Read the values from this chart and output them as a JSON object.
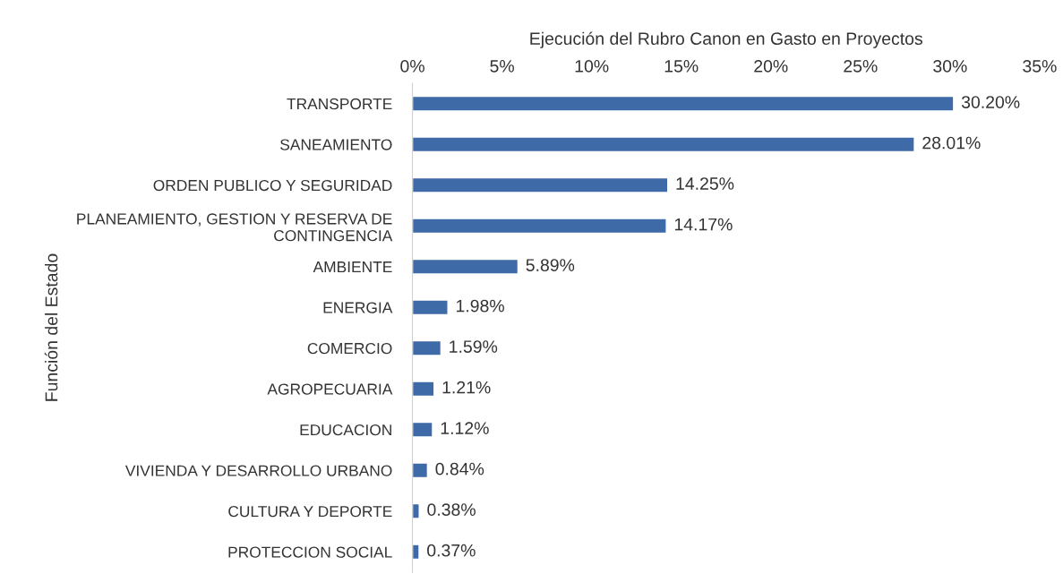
{
  "chart_data": {
    "type": "bar",
    "orientation": "horizontal",
    "xlabel": "Ejecución del Rubro Canon en Gasto en Proyectos",
    "ylabel": "Función del Estado",
    "categories": [
      "TRANSPORTE",
      "SANEAMIENTO",
      "ORDEN PUBLICO Y SEGURIDAD",
      "PLANEAMIENTO, GESTION Y RESERVA DE\nCONTINGENCIA",
      "AMBIENTE",
      "ENERGIA",
      "COMERCIO",
      "AGROPECUARIA",
      "EDUCACION",
      "VIVIENDA Y DESARROLLO URBANO",
      "CULTURA Y DEPORTE",
      "PROTECCION SOCIAL"
    ],
    "values": [
      30.2,
      28.01,
      14.25,
      14.17,
      5.89,
      1.98,
      1.59,
      1.21,
      1.12,
      0.84,
      0.38,
      0.37
    ],
    "value_labels": [
      "30.20%",
      "28.01%",
      "14.25%",
      "14.17%",
      "5.89%",
      "1.98%",
      "1.59%",
      "1.21%",
      "1.12%",
      "0.84%",
      "0.38%",
      "0.37%"
    ],
    "color": "#3e6aa8",
    "xlim": [
      0,
      35
    ],
    "xticks": [
      {
        "value": 0,
        "label": "0%"
      },
      {
        "value": 5,
        "label": "5%"
      },
      {
        "value": 10,
        "label": "10%"
      },
      {
        "value": 15,
        "label": "15%"
      },
      {
        "value": 20,
        "label": "20%"
      },
      {
        "value": 25,
        "label": "25%"
      },
      {
        "value": 30,
        "label": "30%"
      },
      {
        "value": 35,
        "label": "35%"
      }
    ],
    "grid": false,
    "legend": false
  }
}
